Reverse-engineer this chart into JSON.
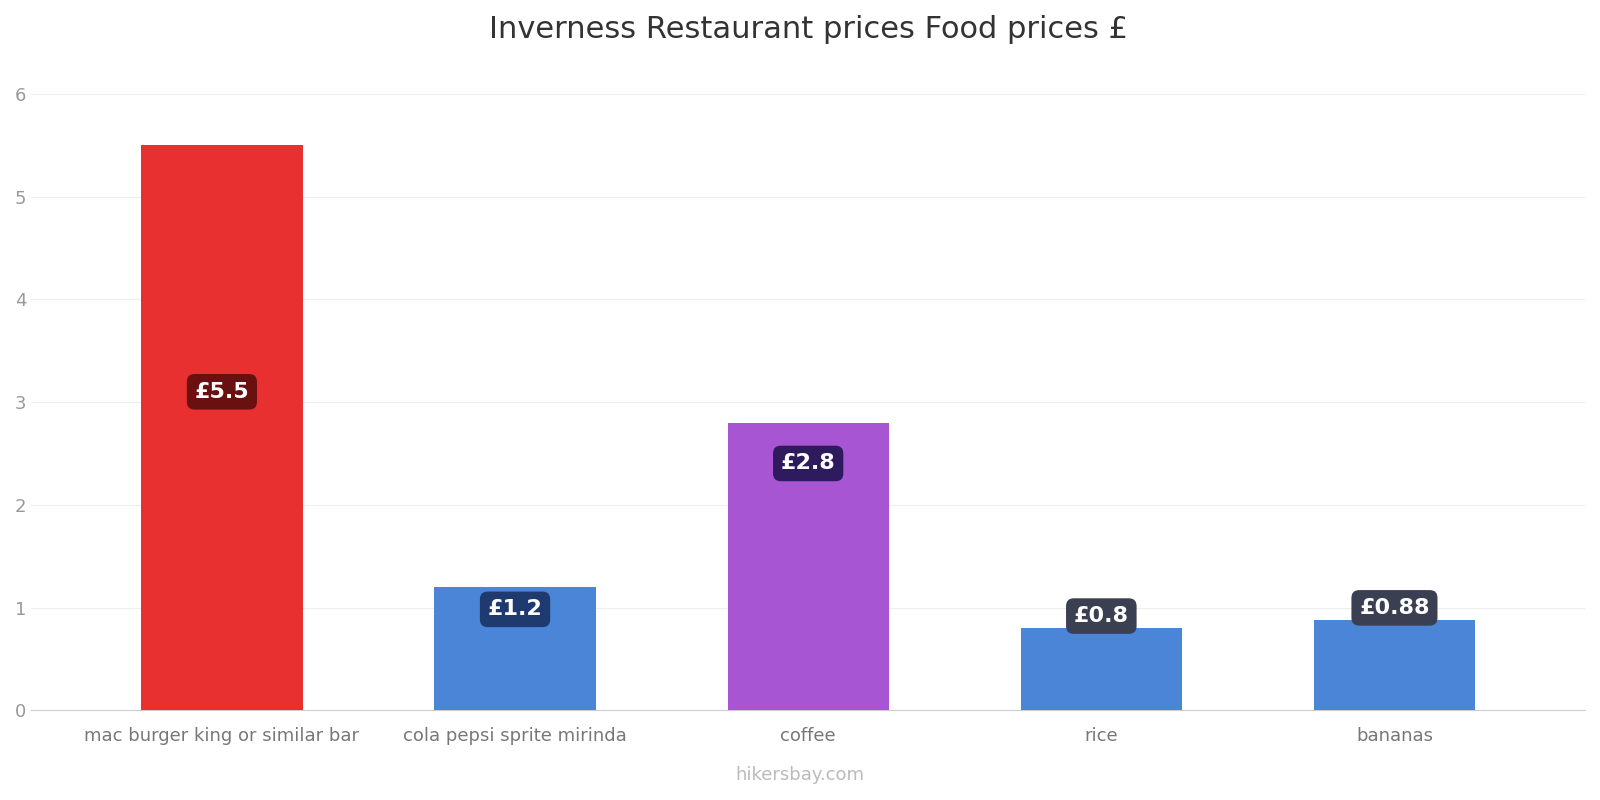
{
  "title": "Inverness Restaurant prices Food prices £",
  "categories": [
    "mac burger king or similar bar",
    "cola pepsi sprite mirinda",
    "coffee",
    "rice",
    "bananas"
  ],
  "values": [
    5.5,
    1.2,
    2.8,
    0.8,
    0.88
  ],
  "bar_colors": [
    "#e83030",
    "#4a85d8",
    "#a855d4",
    "#4a85d8",
    "#4a85d8"
  ],
  "label_texts": [
    "£5.5",
    "£1.2",
    "£2.8",
    "£0.8",
    "£0.88"
  ],
  "label_bg_colors": [
    "#6b1010",
    "#1e3a6e",
    "#2d1b5e",
    "#3a3f52",
    "#3a3f52"
  ],
  "ylim": [
    0,
    6.3
  ],
  "yticks": [
    0,
    1,
    2,
    3,
    4,
    5,
    6
  ],
  "background_color": "#ffffff",
  "grid_color": "#eeeeee",
  "title_fontsize": 22,
  "tick_fontsize": 13,
  "label_fontsize": 16,
  "watermark": "hikersbay.com",
  "watermark_color": "#bbbbbb"
}
